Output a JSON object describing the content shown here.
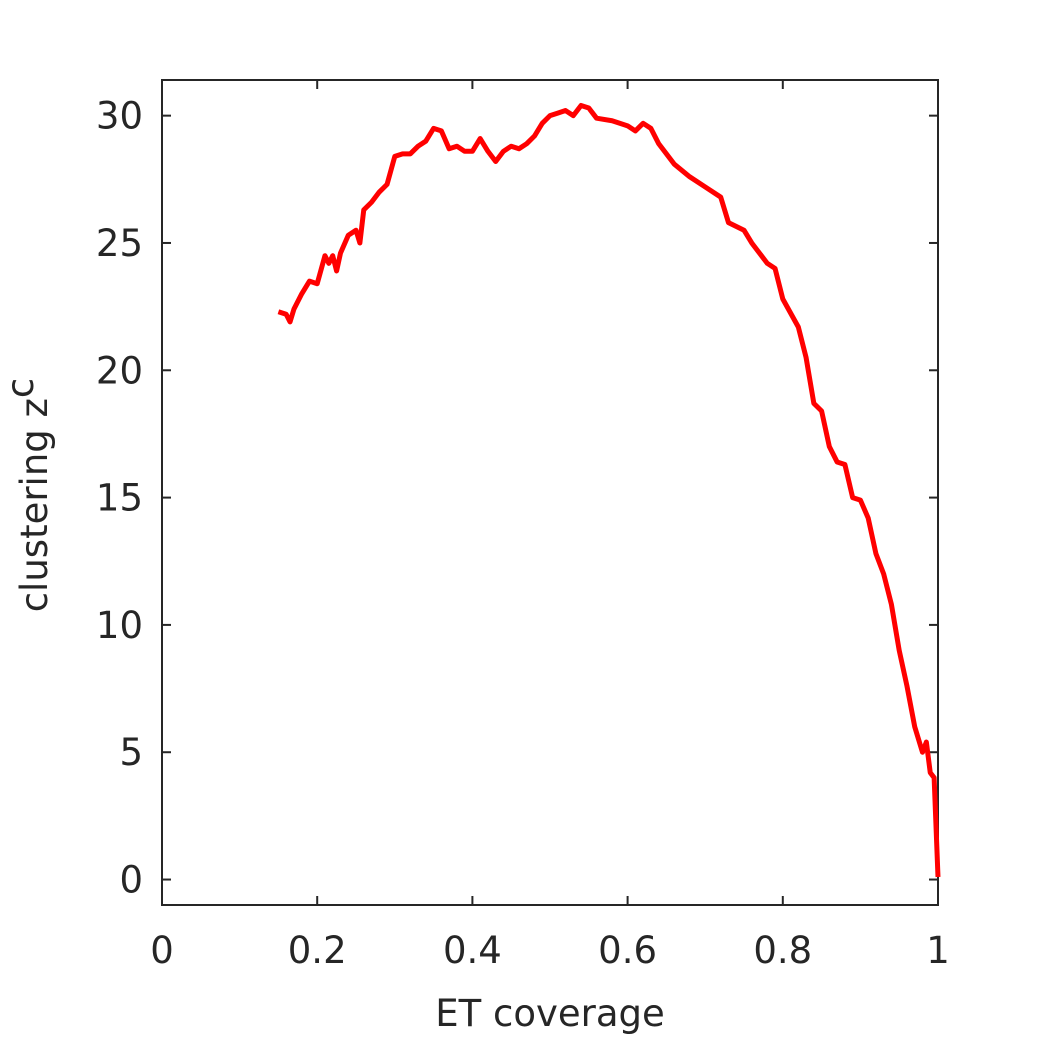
{
  "chart_data": {
    "type": "line",
    "xlabel": "ET coverage",
    "ylabel": {
      "text": "clustering z",
      "subscript": "c"
    },
    "xlim": [
      0,
      1
    ],
    "ylim": [
      -1,
      31.4
    ],
    "xticks": [
      0,
      0.2,
      0.4,
      0.6,
      0.8,
      1
    ],
    "yticks": [
      0,
      5,
      10,
      15,
      20,
      25,
      30
    ],
    "grid": false,
    "series": [
      {
        "color": "#ff0000",
        "x": [
          0.15,
          0.16,
          0.165,
          0.17,
          0.18,
          0.19,
          0.2,
          0.21,
          0.215,
          0.22,
          0.225,
          0.23,
          0.24,
          0.25,
          0.255,
          0.26,
          0.27,
          0.28,
          0.29,
          0.3,
          0.31,
          0.32,
          0.33,
          0.34,
          0.35,
          0.36,
          0.37,
          0.38,
          0.39,
          0.4,
          0.41,
          0.42,
          0.43,
          0.44,
          0.45,
          0.46,
          0.47,
          0.48,
          0.49,
          0.5,
          0.51,
          0.52,
          0.53,
          0.54,
          0.55,
          0.56,
          0.58,
          0.6,
          0.61,
          0.62,
          0.63,
          0.64,
          0.66,
          0.68,
          0.7,
          0.72,
          0.73,
          0.75,
          0.76,
          0.78,
          0.79,
          0.8,
          0.82,
          0.83,
          0.84,
          0.85,
          0.86,
          0.87,
          0.88,
          0.89,
          0.9,
          0.91,
          0.92,
          0.93,
          0.94,
          0.95,
          0.96,
          0.97,
          0.98,
          0.985,
          0.99,
          0.995,
          1.0
        ],
        "values": [
          22.3,
          22.2,
          21.9,
          22.4,
          23.0,
          23.5,
          23.4,
          24.5,
          24.2,
          24.5,
          23.9,
          24.6,
          25.3,
          25.5,
          25.0,
          26.3,
          26.6,
          27.0,
          27.3,
          28.4,
          28.5,
          28.5,
          28.8,
          29.0,
          29.5,
          29.4,
          28.7,
          28.8,
          28.6,
          28.6,
          29.1,
          28.6,
          28.2,
          28.6,
          28.8,
          28.7,
          28.9,
          29.2,
          29.7,
          30.0,
          30.1,
          30.2,
          30.0,
          30.4,
          30.3,
          29.9,
          29.8,
          29.6,
          29.4,
          29.7,
          29.5,
          28.9,
          28.1,
          27.6,
          27.2,
          26.8,
          25.8,
          25.5,
          25.0,
          24.2,
          24.0,
          22.8,
          21.7,
          20.5,
          18.7,
          18.4,
          17.0,
          16.4,
          16.3,
          15.0,
          14.9,
          14.2,
          12.8,
          12.0,
          10.8,
          9.0,
          7.6,
          6.0,
          5.0,
          5.4,
          4.2,
          4.0,
          0.1
        ]
      }
    ]
  }
}
